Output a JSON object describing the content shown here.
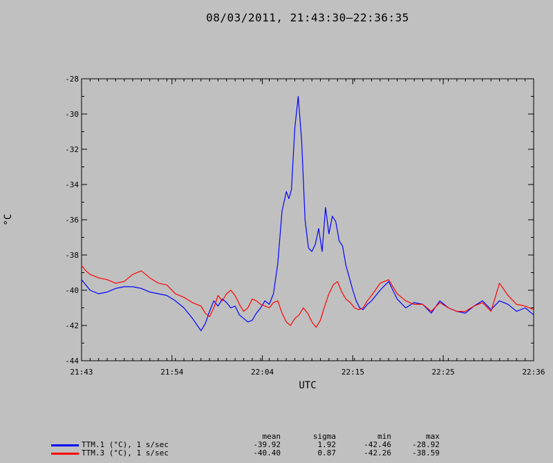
{
  "title": "08/03/2011, 21:43:30–22:36:35",
  "chart_data": {
    "type": "line",
    "xlabel": "UTC",
    "ylabel": "°C",
    "x_ticks": [
      "21:43",
      "21:54",
      "22:04",
      "22:15",
      "22:25",
      "22:36"
    ],
    "x_tick_minutes": [
      0,
      10.6,
      21.2,
      31.8,
      42.4,
      53.0
    ],
    "xlim": [
      0,
      53.0
    ],
    "ylim": [
      -44,
      -28
    ],
    "y_ticks": [
      -44,
      -42,
      -40,
      -38,
      -36,
      -34,
      -32,
      -30,
      -28
    ],
    "grid": false,
    "series": [
      {
        "name": "TTM.1 (°C), 1 s/sec",
        "color": "#0000ff",
        "x": [
          0,
          0.5,
          1,
          2,
          3,
          4,
          5,
          6,
          7,
          8,
          9,
          10,
          11,
          12,
          13,
          14,
          14.5,
          15,
          15.5,
          16,
          16.5,
          17,
          17.5,
          18,
          18.5,
          19,
          19.5,
          20,
          20.5,
          21,
          21.5,
          22,
          22.5,
          23,
          23.5,
          24,
          24.3,
          24.6,
          25,
          25.4,
          25.8,
          26.2,
          26.6,
          27,
          27.4,
          27.8,
          28.2,
          28.6,
          29,
          29.4,
          29.8,
          30.2,
          30.6,
          31,
          31.4,
          31.8,
          32.2,
          32.6,
          33,
          33.5,
          34,
          35,
          36,
          37,
          38,
          39,
          40,
          41,
          42,
          43,
          44,
          45,
          46,
          47,
          48,
          49,
          50,
          51,
          52,
          53
        ],
        "y": [
          -39.4,
          -39.7,
          -40.0,
          -40.2,
          -40.1,
          -39.9,
          -39.8,
          -39.8,
          -39.9,
          -40.1,
          -40.2,
          -40.3,
          -40.6,
          -41.0,
          -41.6,
          -42.3,
          -41.9,
          -41.2,
          -40.6,
          -40.9,
          -40.5,
          -40.7,
          -41.0,
          -40.9,
          -41.4,
          -41.6,
          -41.8,
          -41.7,
          -41.3,
          -41.0,
          -40.6,
          -40.8,
          -40.2,
          -38.5,
          -35.5,
          -34.4,
          -34.8,
          -34.3,
          -30.8,
          -29.0,
          -31.5,
          -36.0,
          -37.6,
          -37.8,
          -37.4,
          -36.5,
          -37.8,
          -35.3,
          -36.8,
          -35.8,
          -36.1,
          -37.2,
          -37.5,
          -38.6,
          -39.3,
          -40.0,
          -40.6,
          -41.0,
          -41.1,
          -40.8,
          -40.6,
          -40.0,
          -39.5,
          -40.5,
          -41.0,
          -40.7,
          -40.8,
          -41.3,
          -40.6,
          -41.0,
          -41.2,
          -41.3,
          -40.9,
          -40.6,
          -41.1,
          -40.6,
          -40.8,
          -41.2,
          -41.0,
          -41.4
        ]
      },
      {
        "name": "TTM.3 (°C), 1 s/sec",
        "color": "#ff0000",
        "x": [
          0,
          0.5,
          1,
          2,
          3,
          4,
          5,
          6,
          7,
          8,
          9,
          10,
          11,
          12,
          13,
          14,
          14.5,
          15,
          15.5,
          16,
          16.5,
          17,
          17.5,
          18,
          18.5,
          19,
          19.5,
          20,
          20.5,
          21,
          21.5,
          22,
          22.5,
          23,
          23.5,
          24,
          24.5,
          25,
          25.5,
          26,
          26.5,
          27,
          27.5,
          28,
          28.5,
          29,
          29.5,
          30,
          30.5,
          31,
          31.5,
          32,
          32.5,
          33,
          33.5,
          34,
          35,
          36,
          37,
          38,
          39,
          40,
          41,
          42,
          43,
          44,
          45,
          46,
          47,
          48,
          49,
          50,
          51,
          52,
          53
        ],
        "y": [
          -38.6,
          -38.9,
          -39.1,
          -39.3,
          -39.4,
          -39.6,
          -39.5,
          -39.1,
          -38.9,
          -39.3,
          -39.6,
          -39.7,
          -40.2,
          -40.4,
          -40.7,
          -40.9,
          -41.3,
          -41.5,
          -41.0,
          -40.3,
          -40.6,
          -40.2,
          -40.0,
          -40.3,
          -40.8,
          -41.2,
          -41.0,
          -40.5,
          -40.6,
          -40.8,
          -40.9,
          -41.0,
          -40.7,
          -40.6,
          -41.3,
          -41.8,
          -42.0,
          -41.6,
          -41.4,
          -41.0,
          -41.3,
          -41.8,
          -42.1,
          -41.7,
          -40.9,
          -40.2,
          -39.7,
          -39.5,
          -40.1,
          -40.5,
          -40.7,
          -41.0,
          -41.1,
          -41.0,
          -40.6,
          -40.3,
          -39.6,
          -39.4,
          -40.2,
          -40.6,
          -40.8,
          -40.8,
          -41.2,
          -40.7,
          -41.0,
          -41.2,
          -41.2,
          -40.9,
          -40.7,
          -41.2,
          -39.6,
          -40.3,
          -40.8,
          -40.9,
          -41.1
        ]
      }
    ]
  },
  "stats": {
    "headers": {
      "mean": "mean",
      "sigma": "sigma",
      "min": "min",
      "max": "max"
    },
    "rows": [
      {
        "label": "TTM.1 (°C), 1 s/sec",
        "color": "#0000ff",
        "mean": "-39.92",
        "sigma": "1.92",
        "min": "-42.46",
        "max": "-28.92"
      },
      {
        "label": "TTM.3 (°C), 1 s/sec",
        "color": "#ff0000",
        "mean": "-40.40",
        "sigma": "0.87",
        "min": "-42.26",
        "max": "-38.59"
      }
    ]
  }
}
